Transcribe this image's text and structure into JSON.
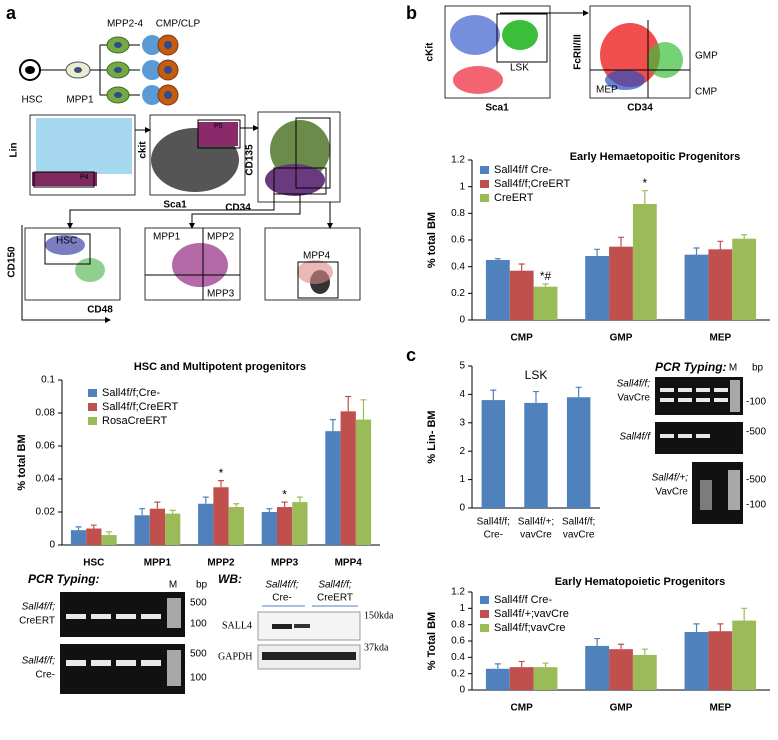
{
  "chart_data": [
    {
      "type": "bar",
      "title": "HSC and Multipotent progenitors",
      "ylabel": "% total BM",
      "categories": [
        "HSC",
        "MPP1",
        "MPP2",
        "MPP3",
        "MPP4"
      ],
      "series": [
        {
          "name": "Sall4f/f;Cre-",
          "color": "#4f81bd",
          "values": [
            0.009,
            0.018,
            0.025,
            0.02,
            0.069
          ],
          "errors": [
            0.002,
            0.004,
            0.004,
            0.002,
            0.007
          ]
        },
        {
          "name": "Sall4f/f;CreERT",
          "color": "#c0504d",
          "values": [
            0.01,
            0.022,
            0.035,
            0.023,
            0.081
          ],
          "errors": [
            0.002,
            0.004,
            0.004,
            0.003,
            0.009
          ]
        },
        {
          "name": "RosaCreERT",
          "color": "#9bbb59",
          "values": [
            0.006,
            0.019,
            0.023,
            0.026,
            0.076
          ],
          "errors": [
            0.002,
            0.002,
            0.002,
            0.003,
            0.012
          ]
        }
      ],
      "ylim": [
        0,
        0.1
      ],
      "yticks": [
        0,
        0.02,
        0.04,
        0.06,
        0.08,
        0.1
      ],
      "annotations": [
        "*",
        "*"
      ]
    },
    {
      "type": "bar",
      "title": "Early Hemaetopoitic Progenitors",
      "ylabel": "% total BM",
      "categories": [
        "CMP",
        "GMP",
        "MEP"
      ],
      "series": [
        {
          "name": "Sall4f/f Cre-",
          "color": "#4f81bd",
          "values": [
            0.45,
            0.48,
            0.49
          ],
          "errors": [
            0.01,
            0.05,
            0.05
          ]
        },
        {
          "name": "Sall4f/f;CreERT",
          "color": "#c0504d",
          "values": [
            0.37,
            0.55,
            0.53
          ],
          "errors": [
            0.05,
            0.07,
            0.06
          ]
        },
        {
          "name": "CreERT",
          "color": "#9bbb59",
          "values": [
            0.25,
            0.87,
            0.61
          ],
          "errors": [
            0.02,
            0.1,
            0.03
          ]
        }
      ],
      "ylim": [
        0,
        1.2
      ],
      "yticks": [
        0,
        0.2,
        0.4,
        0.6,
        0.8,
        1,
        1.2
      ],
      "annotations": [
        "*#",
        "*"
      ]
    },
    {
      "type": "bar",
      "title": "LSK",
      "ylabel": "% Lin- BM",
      "categories": [
        [
          "Sall4f/f;",
          "Cre-"
        ],
        [
          "Sall4f/+;",
          "vavCre"
        ],
        [
          "Sall4f/f;",
          "vavCre"
        ]
      ],
      "values": [
        3.8,
        3.7,
        3.9
      ],
      "errors": [
        0.35,
        0.4,
        0.35
      ],
      "color": "#4f81bd",
      "ylim": [
        0,
        5
      ],
      "yticks": [
        0,
        1,
        2,
        3,
        4,
        5
      ]
    },
    {
      "type": "bar",
      "title": "Early Hematopoietic Progenitors",
      "ylabel": "% Total BM",
      "categories": [
        "CMP",
        "GMP",
        "MEP"
      ],
      "series": [
        {
          "name": "Sall4f/f Cre-",
          "color": "#4f81bd",
          "values": [
            0.26,
            0.54,
            0.71
          ],
          "errors": [
            0.06,
            0.09,
            0.1
          ]
        },
        {
          "name": "Sall4f/+;vavCre",
          "color": "#c0504d",
          "values": [
            0.28,
            0.5,
            0.72
          ],
          "errors": [
            0.07,
            0.06,
            0.09
          ]
        },
        {
          "name": "Sall4f/f;vavCre",
          "color": "#9bbb59",
          "values": [
            0.28,
            0.43,
            0.85
          ],
          "errors": [
            0.05,
            0.07,
            0.15
          ]
        }
      ],
      "ylim": [
        0,
        1.2
      ],
      "yticks": [
        0,
        0.2,
        0.4,
        0.6,
        0.8,
        1,
        1.2
      ]
    }
  ],
  "labels": {
    "panels": [
      "a",
      "b",
      "c"
    ],
    "diagram": [
      "HSC",
      "MPP1",
      "MPP2-4",
      "CMP/CLP"
    ],
    "flow_a": [
      "Lin",
      "ckit",
      "Sca1",
      "CD135",
      "CD34",
      "CD150",
      "CD48",
      "P5",
      "P4",
      "HSC",
      "MPP1",
      "MPP2",
      "MPP3",
      "MPP4"
    ],
    "flow_b": [
      "cKit",
      "Sca1",
      "LSK",
      "FcRII/III",
      "CD34",
      "GMP",
      "MEP",
      "CMP"
    ],
    "pcr_a": {
      "title": "PCR Typing:",
      "lanes": [
        [
          "Sall4f/f;",
          "CreERT"
        ],
        [
          "Sall4f/f;",
          "Cre-"
        ]
      ],
      "marker": "M",
      "unit": "bp",
      "sizes": [
        "500",
        "100",
        "500",
        "100"
      ]
    },
    "wb": {
      "title": "WB:",
      "groups": [
        [
          "Sall4f/f;",
          "Cre-"
        ],
        [
          "Sall4f/f;",
          "CreERT"
        ]
      ],
      "proteins": [
        "SALL4",
        "GAPDH"
      ],
      "sizes": [
        "150kda",
        "37kda"
      ]
    },
    "pcr_c": {
      "title": "PCR Typing:",
      "marker": "M",
      "unit": "bp",
      "lanes": [
        [
          "Sall4f/f;",
          "VavCre"
        ],
        [
          "Sall4f/f"
        ],
        [
          "Sall4f/+;",
          "VavCre"
        ]
      ],
      "sizes": [
        "-100",
        "-500",
        "-500",
        "-100"
      ]
    }
  }
}
